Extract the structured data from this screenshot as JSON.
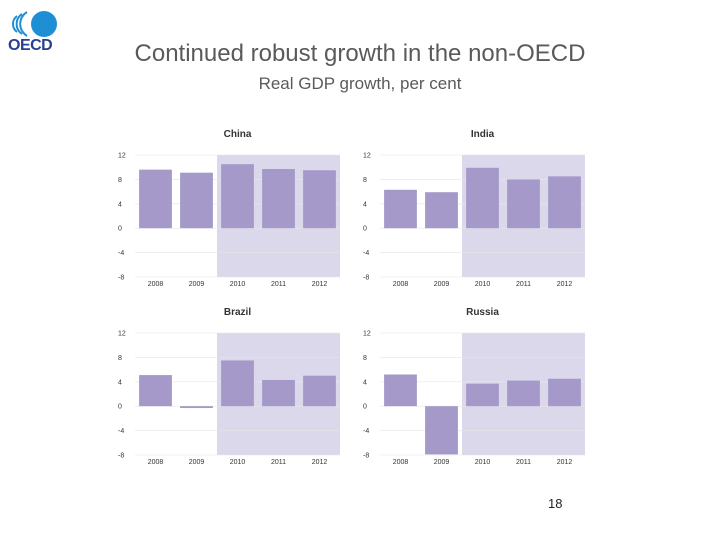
{
  "header": {
    "logo_text": "OECD",
    "title": "Continued robust growth in the non-OECD",
    "subtitle": "Real GDP growth, per cent"
  },
  "footer": {
    "page_number": "18"
  },
  "colors": {
    "bar": "#a499c9",
    "projection_shade": "#dcd8ec",
    "grid": "#e6e6e6",
    "logo_blue": "#1e8fd5"
  },
  "chart_data": [
    {
      "type": "bar",
      "title": "China",
      "categories": [
        "2008",
        "2009",
        "2010",
        "2011",
        "2012"
      ],
      "values": [
        9.6,
        9.1,
        10.5,
        9.7,
        9.5
      ],
      "ylim": [
        -8,
        12
      ],
      "yticks": [
        "12",
        "8",
        "4",
        "0",
        "-4",
        "-8"
      ],
      "shaded_from": "2010",
      "grid": true
    },
    {
      "type": "bar",
      "title": "India",
      "categories": [
        "2008",
        "2009",
        "2010",
        "2011",
        "2012"
      ],
      "values": [
        6.3,
        5.9,
        9.9,
        8.0,
        8.5
      ],
      "ylim": [
        -8,
        12
      ],
      "yticks": [
        "12",
        "8",
        "4",
        "0",
        "-4",
        "-8"
      ],
      "shaded_from": "2010",
      "grid": true
    },
    {
      "type": "bar",
      "title": "Brazil",
      "categories": [
        "2008",
        "2009",
        "2010",
        "2011",
        "2012"
      ],
      "values": [
        5.1,
        -0.3,
        7.5,
        4.3,
        5.0
      ],
      "ylim": [
        -8,
        12
      ],
      "yticks": [
        "12",
        "8",
        "4",
        "0",
        "-4",
        "-8"
      ],
      "shaded_from": "2010",
      "grid": true
    },
    {
      "type": "bar",
      "title": "Russia",
      "categories": [
        "2008",
        "2009",
        "2010",
        "2011",
        "2012"
      ],
      "values": [
        5.2,
        -7.9,
        3.7,
        4.2,
        4.5
      ],
      "ylim": [
        -8,
        12
      ],
      "yticks": [
        "12",
        "8",
        "4",
        "0",
        "-4",
        "-8"
      ],
      "shaded_from": "2010",
      "grid": true
    }
  ]
}
